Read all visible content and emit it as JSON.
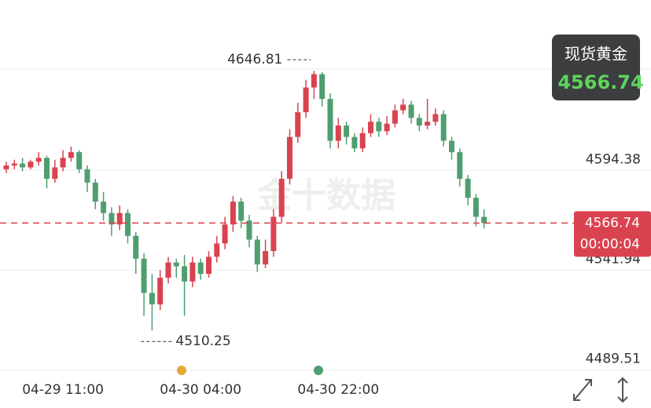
{
  "chart_data": {
    "type": "candlestick",
    "title": "现货黄金",
    "countdown": "00:00:04",
    "watermark": "金十数据",
    "categories": [
      null,
      null,
      null,
      null,
      null,
      null,
      null,
      "04-29 11:00",
      null,
      null,
      null,
      null,
      null,
      null,
      null,
      null,
      null,
      null,
      null,
      null,
      null,
      null,
      null,
      null,
      "04-30 04:00",
      null,
      null,
      null,
      null,
      null,
      null,
      null,
      null,
      null,
      null,
      null,
      null,
      null,
      null,
      null,
      null,
      "04-30 22:00",
      null,
      null,
      null,
      null,
      null,
      null,
      null,
      null,
      null,
      null,
      null,
      null,
      null,
      null,
      null,
      null,
      null,
      null
    ],
    "open": [
      4595,
      4597,
      4598,
      4596,
      4599,
      4601,
      4590,
      4596,
      4601,
      4604,
      4595,
      4588,
      4578,
      4572,
      4566,
      4572,
      4560,
      4548,
      4530,
      4524,
      4538,
      4546,
      4544,
      4536,
      4546,
      4540,
      4549,
      4556,
      4566,
      4578,
      4568,
      4558,
      4545,
      4552,
      4570,
      4590,
      4612,
      4625,
      4638,
      4645,
      4632,
      4610,
      4618,
      4612,
      4606,
      4614,
      4620,
      4615,
      4619,
      4626,
      4629,
      4622,
      4618,
      4620,
      4624,
      4610,
      4604,
      4590,
      4580,
      4570
    ],
    "high": [
      4599,
      4600,
      4601,
      4600,
      4604,
      4602,
      4600,
      4605,
      4607,
      4605,
      4597,
      4590,
      4583,
      4575,
      4576,
      4574,
      4562,
      4551,
      4540,
      4542,
      4549,
      4548,
      4550,
      4549,
      4548,
      4552,
      4560,
      4570,
      4581,
      4580,
      4571,
      4560,
      4558,
      4574,
      4594,
      4616,
      4630,
      4642,
      4646.81,
      4646,
      4635,
      4622,
      4620,
      4614,
      4617,
      4624,
      4622,
      4623,
      4629,
      4632,
      4631,
      4624,
      4632,
      4627,
      4626,
      4612,
      4606,
      4592,
      4582,
      4574
    ],
    "low": [
      4593,
      4595,
      4594,
      4595,
      4597,
      4585,
      4588,
      4594,
      4599,
      4593,
      4583,
      4574,
      4568,
      4560,
      4563,
      4556,
      4540,
      4518,
      4510.25,
      4521,
      4535,
      4538,
      4518,
      4533,
      4537,
      4538,
      4546,
      4553,
      4562,
      4564,
      4554,
      4541,
      4543,
      4549,
      4567,
      4587,
      4609,
      4622,
      4632,
      4628,
      4606,
      4606,
      4608,
      4604,
      4604,
      4612,
      4612,
      4613,
      4617,
      4624,
      4619,
      4615,
      4616,
      4618,
      4607,
      4600,
      4586,
      4576,
      4565,
      4564
    ],
    "close": [
      4597,
      4598,
      4596,
      4599,
      4601,
      4590,
      4596,
      4601,
      4604,
      4595,
      4588,
      4578,
      4572,
      4566,
      4572,
      4560,
      4548,
      4530,
      4524,
      4538,
      4546,
      4544,
      4536,
      4546,
      4540,
      4549,
      4556,
      4566,
      4578,
      4568,
      4558,
      4545,
      4552,
      4570,
      4590,
      4612,
      4625,
      4638,
      4645,
      4632,
      4610,
      4618,
      4612,
      4606,
      4614,
      4620,
      4615,
      4619,
      4626,
      4629,
      4622,
      4618,
      4620,
      4624,
      4610,
      4604,
      4590,
      4580,
      4570,
      4566.74
    ],
    "up_color": "#d9434f",
    "down_color": "#4f9e6f",
    "ylim": [
      4486,
      4684
    ],
    "yticks": [
      4489.51,
      4541.94,
      4594.38
    ],
    "grid": true
  }
}
